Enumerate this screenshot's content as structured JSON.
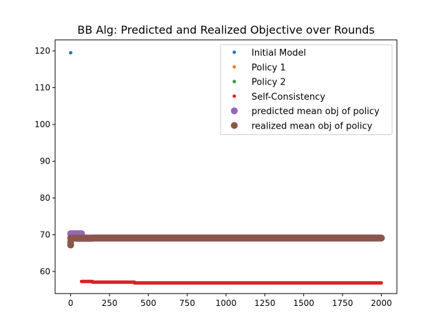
{
  "chart_data": {
    "type": "scatter",
    "title": "BB Alg: Predicted and Realized Objective over Rounds",
    "xlabel": "",
    "ylabel": "",
    "xlim": [
      -100,
      2100
    ],
    "ylim": [
      54,
      123
    ],
    "xticks": [
      0,
      250,
      500,
      750,
      1000,
      1250,
      1500,
      1750,
      2000
    ],
    "yticks": [
      60,
      70,
      80,
      90,
      100,
      110,
      120
    ],
    "grid": false,
    "legend_position": "top-right",
    "series": [
      {
        "name": "Initial Model",
        "color": "#1f77b4",
        "marker": "small",
        "points": [
          [
            0,
            119.5
          ]
        ]
      },
      {
        "name": "Policy 1",
        "color": "#ff7f0e",
        "marker": "small",
        "points": []
      },
      {
        "name": "Policy 2",
        "color": "#2ca02c",
        "marker": "small",
        "points": []
      },
      {
        "name": "Self-Consistency",
        "color": "#d62728",
        "marker": "small",
        "segments": [
          {
            "x_start": 70,
            "x_end": 140,
            "y": 57.3
          },
          {
            "x_start": 140,
            "x_end": 410,
            "y": 57.1
          },
          {
            "x_start": 410,
            "x_end": 2000,
            "y": 56.9
          }
        ]
      },
      {
        "name": "predicted mean obj of policy",
        "color": "#9467bd",
        "marker": "large",
        "segments": [
          {
            "x_start": 0,
            "x_end": 70,
            "y": 70.3
          },
          {
            "x_start": 40,
            "x_end": 140,
            "y": 69.0
          },
          {
            "x_start": 140,
            "x_end": 2000,
            "y": 69.1
          }
        ]
      },
      {
        "name": "realized mean obj of policy",
        "color": "#8c564b",
        "marker": "large",
        "points": [
          [
            0,
            67.2
          ],
          [
            0,
            68.0
          ]
        ],
        "segments": [
          {
            "x_start": 0,
            "x_end": 2000,
            "y": 69.1
          }
        ]
      }
    ]
  }
}
